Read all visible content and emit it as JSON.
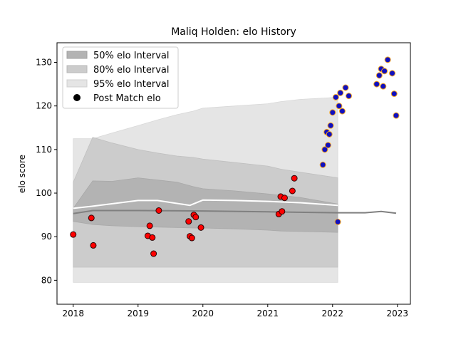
{
  "chart_data": {
    "type": "scatter",
    "title": "Maliq Holden: elo History",
    "xlabel": "",
    "ylabel": "elo score",
    "xlim": [
      2017.75,
      2023.2
    ],
    "ylim": [
      74.5,
      134.5
    ],
    "xticks": [
      2018,
      2019,
      2020,
      2021,
      2022,
      2023
    ],
    "xtick_labels": [
      "2018",
      "2019",
      "2020",
      "2021",
      "2022",
      "2023"
    ],
    "yticks": [
      80,
      90,
      100,
      110,
      120,
      130
    ],
    "ytick_labels": [
      "80",
      "90",
      "100",
      "110",
      "120",
      "130"
    ],
    "grid": false,
    "legend": {
      "placement": "top-left",
      "entries": [
        "50% elo Interval",
        "80% elo Interval",
        "95% elo Interval",
        "Post Match elo"
      ]
    },
    "colors": {
      "band50": "#b3b3b3",
      "band80": "#cccccc",
      "band95": "#e5e5e5",
      "median_line": "#808080",
      "upper_line": "#ffffff",
      "point_red_fill": "#ff0000",
      "point_red_edge": "#2b0000",
      "point_blue_fill": "#1010c0",
      "point_blue_edge": "#f5a623"
    },
    "bands": {
      "x": [
        2018,
        2018.3,
        2018.6,
        2019,
        2019.3,
        2019.6,
        2019.85,
        2020,
        2020.5,
        2021,
        2021.2,
        2021.5,
        2022.08
      ],
      "p95_upper": [
        112.5,
        112.5,
        113.8,
        115.5,
        116.8,
        118,
        118.8,
        119.5,
        120,
        120.5,
        121,
        121.5,
        122
      ],
      "p80_upper": [
        102.5,
        112.8,
        111.5,
        110,
        109.2,
        108.5,
        108.2,
        107.8,
        107,
        106.2,
        105.5,
        104.8,
        103.5
      ],
      "p50_upper": [
        96.5,
        102.8,
        102.7,
        103.5,
        103,
        102.5,
        101.5,
        101,
        100.5,
        99.8,
        99.5,
        99,
        97.5
      ],
      "p50_lower": [
        93.5,
        92.8,
        92.5,
        92.3,
        92.2,
        92.1,
        92,
        92,
        91.8,
        91.5,
        91.3,
        91.2,
        91
      ],
      "p80_lower": [
        83,
        83,
        83,
        83,
        83,
        83,
        83,
        83,
        83,
        83,
        83,
        83,
        83
      ],
      "p95_lower": [
        79.5,
        79.5,
        79.5,
        79.5,
        79.5,
        79.5,
        79.5,
        79.5,
        79.5,
        79.5,
        79.5,
        79.5,
        79.5
      ]
    },
    "median_line": {
      "x": [
        2018,
        2018.3,
        2019,
        2020,
        2021,
        2022.08,
        2022.5,
        2022.75,
        2022.98
      ],
      "y": [
        95.3,
        96,
        96,
        95.9,
        95.7,
        95.5,
        95.5,
        95.8,
        95.4
      ]
    },
    "upper_line": {
      "x": [
        2018,
        2018.3,
        2019,
        2019.3,
        2019.8,
        2020,
        2020.5,
        2021,
        2021.5,
        2022.08
      ],
      "y": [
        96.5,
        97,
        98.3,
        98.3,
        97.2,
        98.4,
        98.3,
        98.1,
        97.8,
        97.2
      ]
    },
    "series": [
      {
        "name": "Post Match elo",
        "x": [
          2018.0,
          2018.28,
          2018.31,
          2019.15,
          2019.18,
          2019.22,
          2019.24,
          2019.32,
          2019.78,
          2019.8,
          2019.83,
          2019.86,
          2019.89,
          2019.97,
          2021.17,
          2021.22,
          2021.2,
          2021.26,
          2021.38,
          2021.41
        ],
        "y": [
          90.5,
          94.3,
          88,
          90.2,
          92.5,
          89.8,
          86.1,
          96,
          93.5,
          90.1,
          89.7,
          95,
          94.5,
          92.1,
          95.2,
          95.8,
          99.2,
          98.9,
          100.5,
          103.4
        ]
      },
      {
        "name": "",
        "x": [
          2021.85,
          2021.88,
          2021.91,
          2021.93,
          2021.95,
          2021.97,
          2022.0,
          2022.05,
          2022.08,
          2022.1,
          2022.12,
          2022.15,
          2022.2,
          2022.25,
          2022.68,
          2022.72,
          2022.75,
          2022.78,
          2022.8,
          2022.85,
          2022.92,
          2022.95,
          2022.98
        ],
        "y": [
          106.5,
          110,
          114,
          111,
          113.5,
          115.5,
          118.5,
          122,
          93.4,
          120,
          123,
          118.8,
          124.2,
          122.3,
          125,
          127,
          128.5,
          124.5,
          128,
          130.6,
          127.5,
          122.8,
          117.8
        ]
      }
    ]
  }
}
